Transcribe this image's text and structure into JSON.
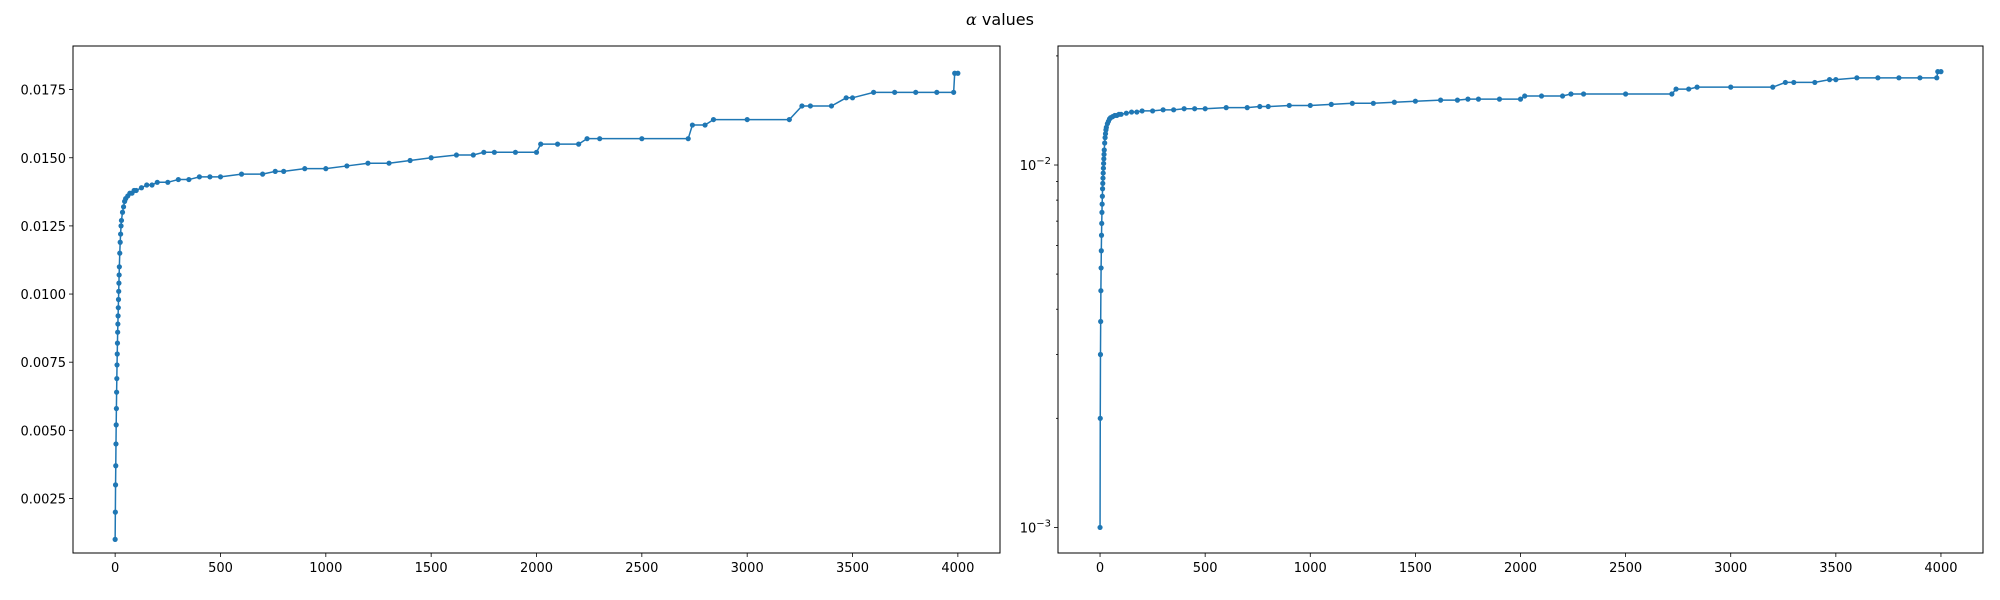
{
  "figure": {
    "title_symbol": "α",
    "title_text": " values"
  },
  "chart_data": [
    {
      "type": "line",
      "title": "",
      "xlabel": "",
      "ylabel": "",
      "yscale": "linear",
      "xlim": [
        -200,
        4200
      ],
      "ylim": [
        0.0005,
        0.0191
      ],
      "xticks": [
        0,
        500,
        1000,
        1500,
        2000,
        2500,
        3000,
        3500,
        4000
      ],
      "xtick_labels": [
        "0",
        "500",
        "1000",
        "1500",
        "2000",
        "2500",
        "3000",
        "3500",
        "4000"
      ],
      "yticks": [
        0.0025,
        0.005,
        0.0075,
        0.01,
        0.0125,
        0.015,
        0.0175
      ],
      "ytick_labels": [
        "0.0025",
        "0.0050",
        "0.0075",
        "0.0100",
        "0.0125",
        "0.0150",
        "0.0175"
      ],
      "grid": false,
      "marker": "dot",
      "color": "#1f77b4",
      "series": [
        {
          "x": [
            0,
            1,
            2,
            3,
            4,
            5,
            6,
            7,
            8,
            9,
            10,
            11,
            12,
            13,
            14,
            15,
            16,
            17,
            18,
            19,
            20,
            22,
            24,
            26,
            28,
            30,
            35,
            40,
            45,
            50,
            60,
            70,
            80,
            90,
            100,
            125,
            150,
            175,
            200,
            250,
            300,
            350,
            400,
            450,
            500,
            600,
            700,
            760,
            800,
            900,
            1000,
            1100,
            1200,
            1300,
            1400,
            1500,
            1620,
            1700,
            1750,
            1800,
            1900,
            2000,
            2020,
            2100,
            2200,
            2240,
            2300,
            2500,
            2720,
            2740,
            2800,
            2840,
            3000,
            3200,
            3260,
            3300,
            3400,
            3470,
            3500,
            3600,
            3700,
            3800,
            3900,
            3980,
            3985,
            4000
          ],
          "y": [
            0.001,
            0.002,
            0.003,
            0.0037,
            0.0045,
            0.0052,
            0.0058,
            0.0064,
            0.0069,
            0.0074,
            0.0078,
            0.0082,
            0.0086,
            0.0089,
            0.0092,
            0.0095,
            0.0098,
            0.0101,
            0.0104,
            0.0107,
            0.011,
            0.0115,
            0.0119,
            0.0122,
            0.0125,
            0.0127,
            0.013,
            0.0132,
            0.0134,
            0.0135,
            0.0136,
            0.0137,
            0.0137,
            0.0138,
            0.0138,
            0.0139,
            0.014,
            0.014,
            0.0141,
            0.0141,
            0.0142,
            0.0142,
            0.0143,
            0.0143,
            0.0143,
            0.0144,
            0.0144,
            0.0145,
            0.0145,
            0.0146,
            0.0146,
            0.0147,
            0.0148,
            0.0148,
            0.0149,
            0.015,
            0.0151,
            0.0151,
            0.0152,
            0.0152,
            0.0152,
            0.0152,
            0.0155,
            0.0155,
            0.0155,
            0.0157,
            0.0157,
            0.0157,
            0.0157,
            0.0162,
            0.0162,
            0.0164,
            0.0164,
            0.0164,
            0.0169,
            0.0169,
            0.0169,
            0.0172,
            0.0172,
            0.0174,
            0.0174,
            0.0174,
            0.0174,
            0.0174,
            0.0181,
            0.0181
          ]
        }
      ]
    },
    {
      "type": "line",
      "title": "",
      "xlabel": "",
      "ylabel": "",
      "yscale": "log",
      "xlim": [
        -200,
        4200
      ],
      "ylim": [
        0.00085,
        0.0213
      ],
      "xticks": [
        0,
        500,
        1000,
        1500,
        2000,
        2500,
        3000,
        3500,
        4000
      ],
      "xtick_labels": [
        "0",
        "500",
        "1000",
        "1500",
        "2000",
        "2500",
        "3000",
        "3500",
        "4000"
      ],
      "yticks": [
        0.001,
        0.01
      ],
      "ytick_labels": [
        {
          "base": "10",
          "exp": "−3"
        },
        {
          "base": "10",
          "exp": "−2"
        }
      ],
      "grid": false,
      "marker": "dot",
      "color": "#1f77b4",
      "series": [
        {
          "x": [
            0,
            1,
            2,
            3,
            4,
            5,
            6,
            7,
            8,
            9,
            10,
            11,
            12,
            13,
            14,
            15,
            16,
            17,
            18,
            19,
            20,
            22,
            24,
            26,
            28,
            30,
            35,
            40,
            45,
            50,
            60,
            70,
            80,
            90,
            100,
            125,
            150,
            175,
            200,
            250,
            300,
            350,
            400,
            450,
            500,
            600,
            700,
            760,
            800,
            900,
            1000,
            1100,
            1200,
            1300,
            1400,
            1500,
            1620,
            1700,
            1750,
            1800,
            1900,
            2000,
            2020,
            2100,
            2200,
            2240,
            2300,
            2500,
            2720,
            2740,
            2800,
            2840,
            3000,
            3200,
            3260,
            3300,
            3400,
            3470,
            3500,
            3600,
            3700,
            3800,
            3900,
            3980,
            3985,
            4000
          ],
          "y": [
            0.001,
            0.002,
            0.003,
            0.0037,
            0.0045,
            0.0052,
            0.0058,
            0.0064,
            0.0069,
            0.0074,
            0.0078,
            0.0082,
            0.0086,
            0.0089,
            0.0092,
            0.0095,
            0.0098,
            0.0101,
            0.0104,
            0.0107,
            0.011,
            0.0115,
            0.0119,
            0.0122,
            0.0125,
            0.0127,
            0.013,
            0.0132,
            0.0134,
            0.0135,
            0.0136,
            0.0137,
            0.0137,
            0.0138,
            0.0138,
            0.0139,
            0.014,
            0.014,
            0.0141,
            0.0141,
            0.0142,
            0.0142,
            0.0143,
            0.0143,
            0.0143,
            0.0144,
            0.0144,
            0.0145,
            0.0145,
            0.0146,
            0.0146,
            0.0147,
            0.0148,
            0.0148,
            0.0149,
            0.015,
            0.0151,
            0.0151,
            0.0152,
            0.0152,
            0.0152,
            0.0152,
            0.0155,
            0.0155,
            0.0155,
            0.0157,
            0.0157,
            0.0157,
            0.0157,
            0.0162,
            0.0162,
            0.0164,
            0.0164,
            0.0164,
            0.0169,
            0.0169,
            0.0169,
            0.0172,
            0.0172,
            0.0174,
            0.0174,
            0.0174,
            0.0174,
            0.0174,
            0.0181,
            0.0181
          ]
        }
      ]
    }
  ]
}
